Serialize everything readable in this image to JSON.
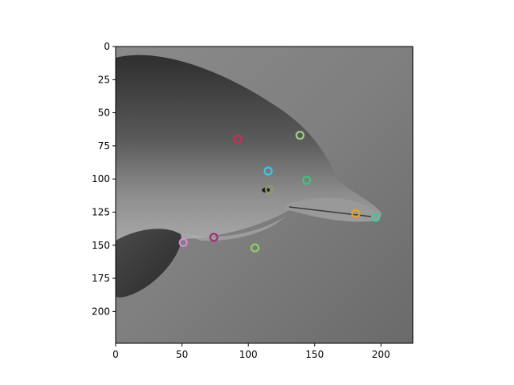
{
  "chart_data": {
    "type": "scatter",
    "title": "",
    "xlabel": "",
    "ylabel": "",
    "xlim": [
      0,
      224
    ],
    "ylim": [
      224,
      0
    ],
    "grid": false,
    "x_ticks": [
      0,
      50,
      100,
      150,
      200
    ],
    "y_ticks": [
      0,
      25,
      50,
      75,
      100,
      125,
      150,
      175,
      200
    ],
    "background_image": "grayscale underwater photo of a dolphin head",
    "marker": "hollow-circle",
    "points": [
      {
        "x": 92,
        "y": 70,
        "color": "#c8305a"
      },
      {
        "x": 139,
        "y": 67,
        "color": "#9fd08a"
      },
      {
        "x": 115,
        "y": 94,
        "color": "#38c8e8"
      },
      {
        "x": 144,
        "y": 101,
        "color": "#3fc47d"
      },
      {
        "x": 116,
        "y": 108,
        "color": "#8a9a6a"
      },
      {
        "x": 181,
        "y": 126,
        "color": "#e8a020"
      },
      {
        "x": 196,
        "y": 129,
        "color": "#40c8a0"
      },
      {
        "x": 51,
        "y": 148,
        "color": "#d88ad8"
      },
      {
        "x": 74,
        "y": 144,
        "color": "#a0307a"
      },
      {
        "x": 105,
        "y": 152,
        "color": "#90d060"
      }
    ]
  }
}
